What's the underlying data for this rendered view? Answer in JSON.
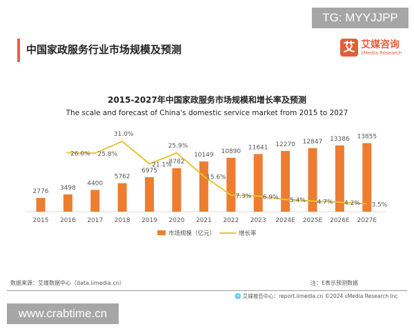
{
  "watermarks": {
    "top": "TG: MYYJJPP",
    "bottom": "www.crabtime.cn"
  },
  "header": {
    "title": "中国家政服务行业市场规模及预测",
    "logo_char": "艾",
    "logo_cn": "艾媒咨询",
    "logo_en": "iiMedia Research"
  },
  "footer": {
    "source": "数据来源：艾媒数据中心（data.iimedia.cn）",
    "note": "注：E表示预测数据",
    "credit": "艾媒报告中心：report.iimedia.cn    ©2024  iiMedia Research  Inc"
  },
  "chart_data": {
    "type": "bar+line",
    "title": "2015-2027年中国家政服务市场规模和增长率及预测",
    "subtitle": "The scale and forecast of China's domestic service market from 2015 to 2027",
    "categories": [
      "2015",
      "2016",
      "2017",
      "2018",
      "2019",
      "2020",
      "2021",
      "2022",
      "2023",
      "2024E",
      "2025E",
      "2026E",
      "2027E"
    ],
    "series": [
      {
        "name": "市场规模（亿元）",
        "type": "bar",
        "color": "#ed7d31",
        "values": [
          2776,
          3498,
          4400,
          5762,
          6975,
          8782,
          10149,
          10890,
          11641,
          12270,
          12847,
          13386,
          13855
        ],
        "labels": [
          "2776",
          "3498",
          "4400",
          "5762",
          "6975",
          "8782",
          "10149",
          "10890",
          "11641",
          "12270",
          "12847",
          "13386",
          "13855"
        ]
      },
      {
        "name": "增长率",
        "type": "line",
        "color": "#e6c532",
        "values": [
          null,
          26.0,
          25.8,
          31.0,
          21.1,
          25.9,
          15.6,
          7.3,
          6.9,
          5.4,
          4.7,
          4.2,
          3.5
        ],
        "labels": [
          "",
          "26.0%",
          "25.8%",
          "31.0%",
          "21.1%",
          "25.9%",
          "15.6%",
          "7.3%",
          "6.9%",
          "5.4%",
          "4.7%",
          "4.2%",
          "3.5%"
        ]
      }
    ],
    "legend": "bottom",
    "grid": false
  }
}
